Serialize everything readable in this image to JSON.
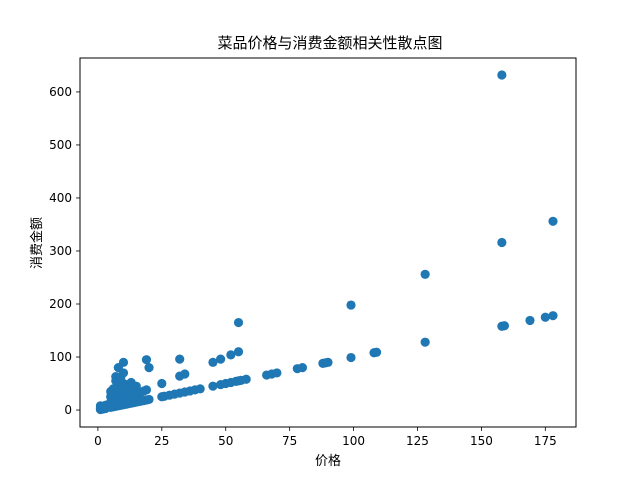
{
  "chart_data": {
    "type": "scatter",
    "title": "菜品价格与消费金额相关性散点图",
    "xlabel": "价格",
    "ylabel": "消费金额",
    "xlim": [
      -7,
      187
    ],
    "ylim": [
      -32,
      664
    ],
    "xticks": [
      0,
      25,
      50,
      75,
      100,
      125,
      150,
      175
    ],
    "yticks": [
      0,
      100,
      200,
      300,
      400,
      500,
      600
    ],
    "grid": false,
    "legend": "none",
    "marker_color": "#1f77b4",
    "points": [
      [
        1,
        1
      ],
      [
        1,
        2
      ],
      [
        1,
        3
      ],
      [
        1,
        5
      ],
      [
        1,
        8
      ],
      [
        2,
        2
      ],
      [
        2,
        4
      ],
      [
        2,
        6
      ],
      [
        3,
        3
      ],
      [
        3,
        6
      ],
      [
        3,
        9
      ],
      [
        5,
        5
      ],
      [
        5,
        10
      ],
      [
        5,
        15
      ],
      [
        5,
        25
      ],
      [
        5,
        35
      ],
      [
        6,
        6
      ],
      [
        6,
        12
      ],
      [
        6,
        18
      ],
      [
        6,
        30
      ],
      [
        6,
        40
      ],
      [
        7,
        7
      ],
      [
        7,
        14
      ],
      [
        7,
        21
      ],
      [
        7,
        28
      ],
      [
        7,
        42
      ],
      [
        7,
        55
      ],
      [
        7,
        63
      ],
      [
        8,
        8
      ],
      [
        8,
        16
      ],
      [
        8,
        24
      ],
      [
        8,
        32
      ],
      [
        8,
        40
      ],
      [
        8,
        48
      ],
      [
        8,
        80
      ],
      [
        9,
        9
      ],
      [
        9,
        18
      ],
      [
        9,
        27
      ],
      [
        9,
        36
      ],
      [
        9,
        45
      ],
      [
        9,
        54
      ],
      [
        9,
        63
      ],
      [
        10,
        10
      ],
      [
        10,
        20
      ],
      [
        10,
        30
      ],
      [
        10,
        40
      ],
      [
        10,
        50
      ],
      [
        10,
        70
      ],
      [
        10,
        90
      ],
      [
        11,
        11
      ],
      [
        11,
        22
      ],
      [
        11,
        33
      ],
      [
        11,
        44
      ],
      [
        12,
        12
      ],
      [
        12,
        24
      ],
      [
        12,
        36
      ],
      [
        12,
        48
      ],
      [
        13,
        13
      ],
      [
        13,
        26
      ],
      [
        13,
        39
      ],
      [
        13,
        52
      ],
      [
        14,
        14
      ],
      [
        14,
        28
      ],
      [
        14,
        42
      ],
      [
        15,
        15
      ],
      [
        15,
        30
      ],
      [
        15,
        45
      ],
      [
        16,
        16
      ],
      [
        16,
        32
      ],
      [
        17,
        17
      ],
      [
        17,
        34
      ],
      [
        18,
        18
      ],
      [
        18,
        36
      ],
      [
        19,
        19
      ],
      [
        19,
        38
      ],
      [
        19,
        95
      ],
      [
        20,
        20
      ],
      [
        20,
        80
      ],
      [
        25,
        25
      ],
      [
        25,
        50
      ],
      [
        26,
        26
      ],
      [
        28,
        28
      ],
      [
        30,
        30
      ],
      [
        32,
        32
      ],
      [
        32,
        64
      ],
      [
        32,
        96
      ],
      [
        34,
        34
      ],
      [
        34,
        68
      ],
      [
        36,
        36
      ],
      [
        38,
        38
      ],
      [
        40,
        40
      ],
      [
        45,
        45
      ],
      [
        45,
        90
      ],
      [
        48,
        48
      ],
      [
        48,
        96
      ],
      [
        50,
        50
      ],
      [
        52,
        52
      ],
      [
        52,
        104
      ],
      [
        54,
        54
      ],
      [
        55,
        55
      ],
      [
        55,
        110
      ],
      [
        55,
        165
      ],
      [
        56,
        56
      ],
      [
        58,
        58
      ],
      [
        66,
        66
      ],
      [
        68,
        68
      ],
      [
        70,
        70
      ],
      [
        78,
        78
      ],
      [
        80,
        80
      ],
      [
        88,
        88
      ],
      [
        89,
        89
      ],
      [
        90,
        90
      ],
      [
        99,
        99
      ],
      [
        99,
        198
      ],
      [
        108,
        108
      ],
      [
        109,
        109
      ],
      [
        128,
        128
      ],
      [
        128,
        256
      ],
      [
        158,
        158
      ],
      [
        159,
        159
      ],
      [
        158,
        316
      ],
      [
        158,
        632
      ],
      [
        169,
        169
      ],
      [
        175,
        175
      ],
      [
        178,
        178
      ],
      [
        178,
        356
      ]
    ]
  }
}
